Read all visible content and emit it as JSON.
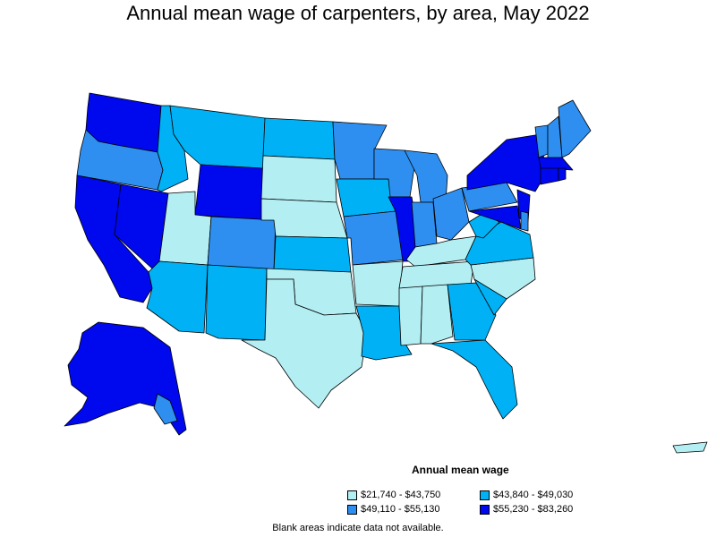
{
  "title": "Annual mean wage of carpenters, by area, May 2022",
  "legend": {
    "title": "Annual mean wage",
    "classes": [
      {
        "label": "$21,740 - $43,750",
        "color": "#b3eef3"
      },
      {
        "label": "$43,840 - $49,030",
        "color": "#00b2f5"
      },
      {
        "label": "$49,110 - $55,130",
        "color": "#2e8ff0"
      },
      {
        "label": "$55,230 - $83,260",
        "color": "#0008ee"
      }
    ]
  },
  "footnote": "Blank areas indicate data not available.",
  "state_tiers": {
    "WA": 3,
    "OR": 2,
    "CA": 3,
    "NV": 3,
    "ID": 1,
    "MT": 1,
    "WY": 3,
    "UT": 0,
    "CO": 2,
    "AZ": 1,
    "NM": 1,
    "ND": 1,
    "SD": 0,
    "NE": 0,
    "KS": 1,
    "OK": 0,
    "TX": 0,
    "MN": 2,
    "IA": 1,
    "MO": 2,
    "AR": 0,
    "LA": 1,
    "WI": 2,
    "IL": 3,
    "MI": 2,
    "IN": 2,
    "OH": 2,
    "KY": 0,
    "TN": 0,
    "MS": 0,
    "AL": 0,
    "GA": 1,
    "FL": 1,
    "SC": 1,
    "NC": 0,
    "VA": 1,
    "WV": 1,
    "PA": 2,
    "NY": 3,
    "NJ": 3,
    "MD": 3,
    "VT": 2,
    "NH": 2,
    "ME": 2,
    "MA": 3,
    "CT": 3,
    "RI": 3,
    "DE": 2,
    "AK": 3,
    "HI": 2,
    "PR": 0
  }
}
